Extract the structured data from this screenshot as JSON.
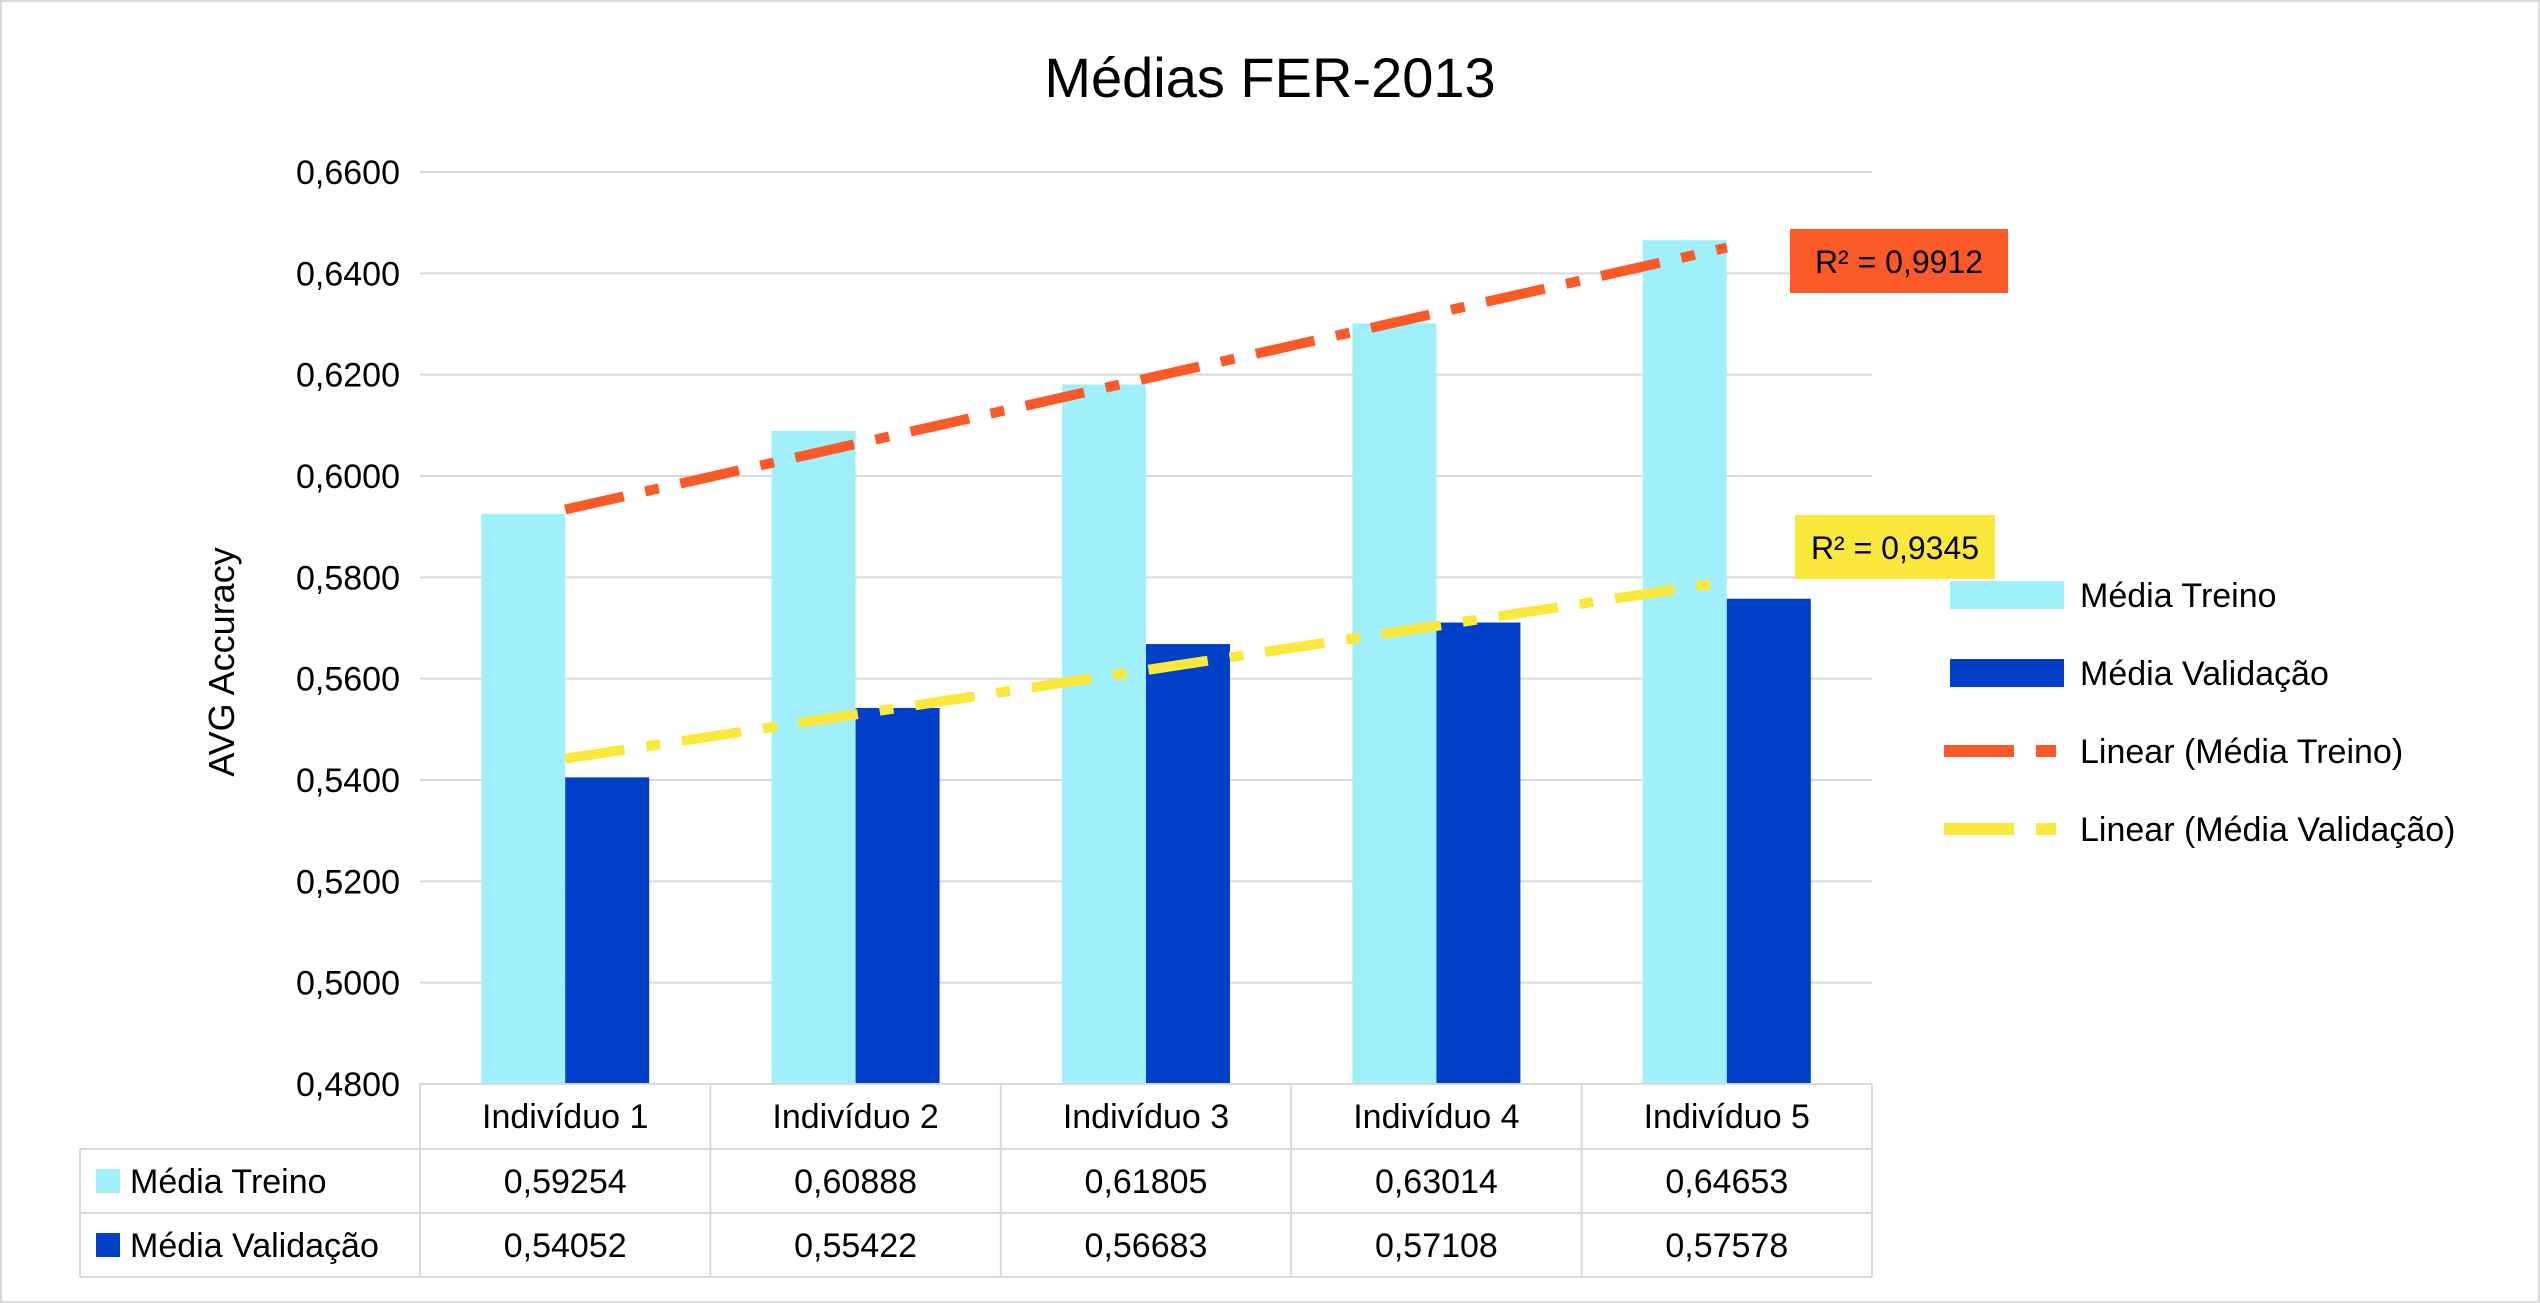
{
  "chart_data": {
    "type": "bar",
    "title": "Médias FER-2013",
    "xlabel": "",
    "ylabel": "AVG Accuracy",
    "ylim": [
      0.48,
      0.66
    ],
    "yticks": [
      "0,4800",
      "0,5000",
      "0,5200",
      "0,5400",
      "0,5600",
      "0,5800",
      "0,6000",
      "0,6200",
      "0,6400",
      "0,6600"
    ],
    "grid": true,
    "legend_position": "right",
    "categories": [
      "Indivíduo 1",
      "Indivíduo 2",
      "Indivíduo 3",
      "Indivíduo 4",
      "Indivíduo 5"
    ],
    "series": [
      {
        "name": "Média Treino",
        "color": "#9ff0fa",
        "values": [
          0.59254,
          0.60888,
          0.61805,
          0.63014,
          0.64653
        ],
        "labels": [
          "0,59254",
          "0,60888",
          "0,61805",
          "0,63014",
          "0,64653"
        ]
      },
      {
        "name": "Média Validação",
        "color": "#0040c8",
        "values": [
          0.54052,
          0.55422,
          0.56683,
          0.57108,
          0.57578
        ],
        "labels": [
          "0,54052",
          "0,55422",
          "0,56683",
          "0,57108",
          "0,57578"
        ]
      }
    ],
    "trendlines": [
      {
        "name": "Linear (Média Treino)",
        "color": "#fa5a28",
        "r2_label": "R² = 0,9912"
      },
      {
        "name": "Linear (Média Validação)",
        "color": "#fbe83c",
        "r2_label": "R² = 0,9345"
      }
    ]
  }
}
